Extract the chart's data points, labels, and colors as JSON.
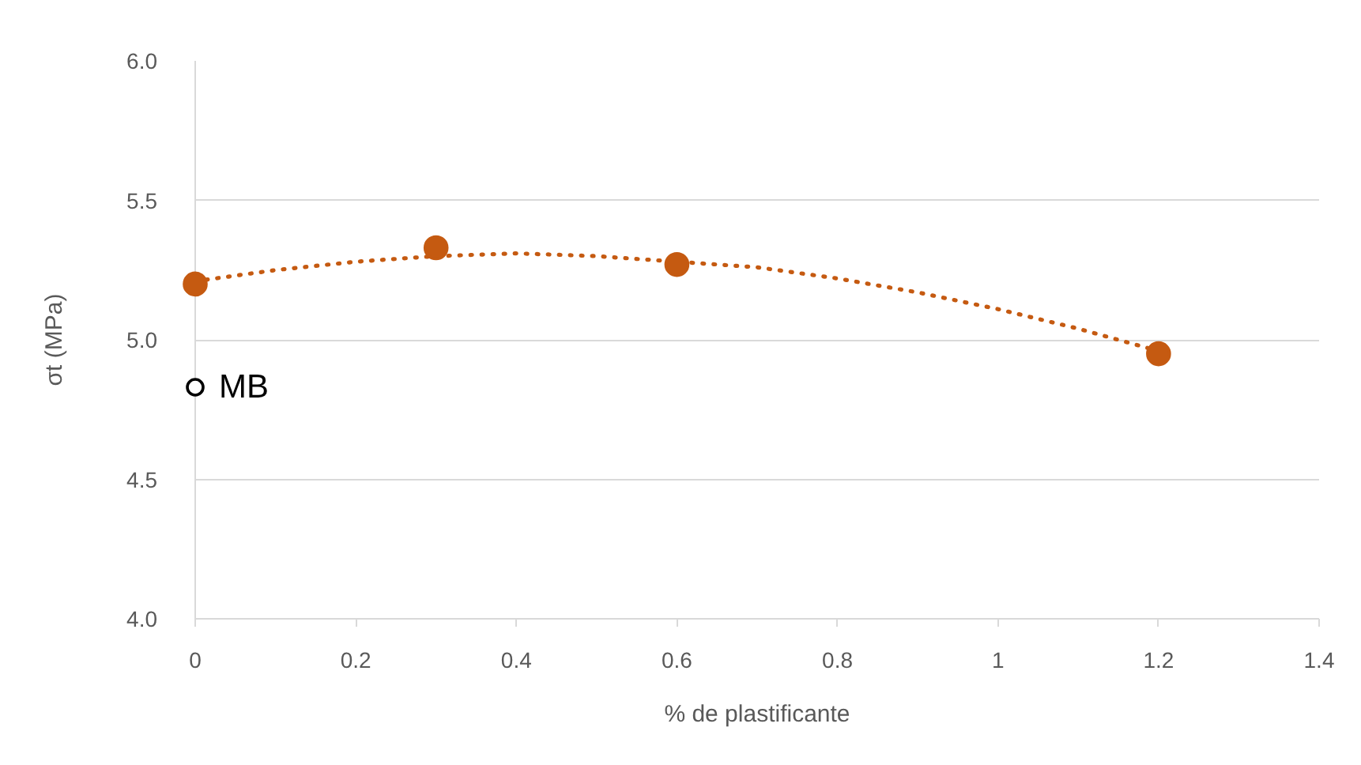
{
  "chart_data": {
    "type": "scatter",
    "xlabel": "% de plastificante",
    "ylabel": "σt (MPa)",
    "xlim": [
      0,
      1.4
    ],
    "xticks": [
      0,
      0.2,
      0.4,
      0.6,
      0.8,
      1,
      1.2,
      1.4
    ],
    "ylim": [
      4,
      6
    ],
    "yticks": [
      {
        "value": 4,
        "label": "4.0"
      },
      {
        "value": 4.5,
        "label": "4.5"
      },
      {
        "value": 5,
        "label": "5.0"
      },
      {
        "value": 5.5,
        "label": "5.5"
      },
      {
        "value": 6,
        "label": "6.0"
      }
    ],
    "grid": "y",
    "legend": false,
    "series": [
      {
        "type": "line",
        "color": "#c55a11",
        "line_style": "dotted",
        "marker": "none",
        "x": [
          0,
          0.1,
          0.2,
          0.3,
          0.4,
          0.5,
          0.6,
          0.7,
          0.8,
          0.9,
          1.0,
          1.1,
          1.2
        ],
        "values": [
          5.21,
          5.25,
          5.28,
          5.3,
          5.31,
          5.3,
          5.28,
          5.26,
          5.22,
          5.17,
          5.11,
          5.04,
          4.96
        ]
      },
      {
        "color": "#c55a11",
        "marker": "circle",
        "x": [
          0,
          0.3,
          0.6,
          1.2
        ],
        "values": [
          5.2,
          5.33,
          5.27,
          4.95
        ]
      },
      {
        "name": "MB",
        "color": "#000000",
        "marker": "circle",
        "x": [
          0
        ],
        "values": [
          4.83
        ]
      }
    ]
  }
}
